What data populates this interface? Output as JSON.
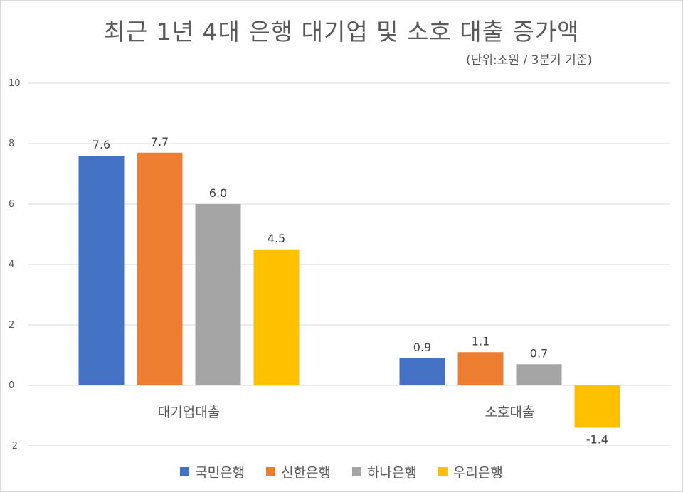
{
  "chart_data": {
    "type": "bar",
    "title": "최근 1년 4대 은행 대기업 및 소호 대출 증가액",
    "subtitle": "(단위:조원 / 3분기 기준)",
    "categories": [
      "대기업대출",
      "소호대출"
    ],
    "series": [
      {
        "name": "국민은행",
        "color": "#4472C4",
        "values": [
          7.6,
          0.9
        ],
        "labels": [
          "7.6",
          "0.9"
        ]
      },
      {
        "name": "신한은행",
        "color": "#ED7D31",
        "values": [
          7.7,
          1.1
        ],
        "labels": [
          "7.7",
          "1.1"
        ]
      },
      {
        "name": "하나은행",
        "color": "#A5A5A5",
        "values": [
          6.0,
          0.7
        ],
        "labels": [
          "6.0",
          "0.7"
        ]
      },
      {
        "name": "우리은행",
        "color": "#FFC000",
        "values": [
          4.5,
          -1.4
        ],
        "labels": [
          "4.5",
          "-1.4"
        ]
      }
    ],
    "yticks": [
      "-2",
      "0",
      "2",
      "4",
      "6",
      "8",
      "10"
    ],
    "ylim": [
      -2,
      10
    ],
    "grid": true,
    "legend": "bottom"
  }
}
